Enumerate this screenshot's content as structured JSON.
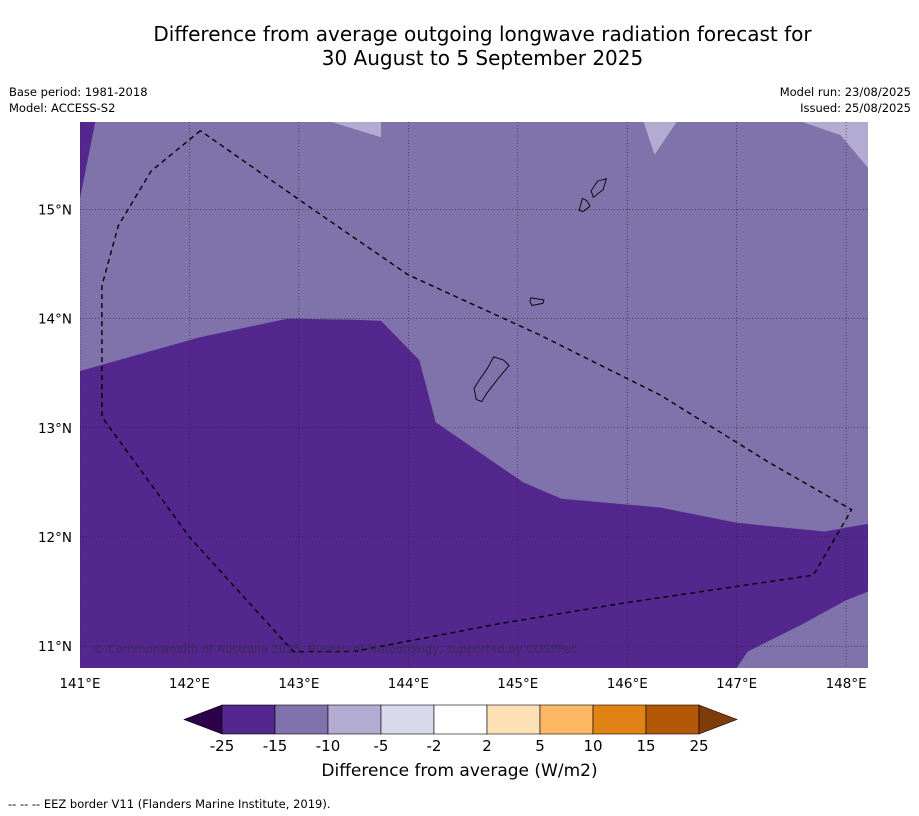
{
  "title_line1": "Difference from average outgoing longwave radiation forecast for",
  "title_line2": "30 August to 5 September 2025",
  "meta_left": [
    "Base period: 1981-2018",
    "Model: ACCESS-S2"
  ],
  "meta_right": [
    "Model run: 23/08/2025",
    "Issued: 25/08/2025"
  ],
  "copyright": "© Commonwealth of Australia 2025, Bureau of Meteorology, supported by COSPPac",
  "map": {
    "lon_range": [
      141.0,
      148.2
    ],
    "lat_range": [
      10.8,
      15.8
    ],
    "lon_ticks": [
      {
        "v": 141,
        "label": "141°E"
      },
      {
        "v": 142,
        "label": "142°E"
      },
      {
        "v": 143,
        "label": "143°E"
      },
      {
        "v": 144,
        "label": "144°E"
      },
      {
        "v": 145,
        "label": "145°E"
      },
      {
        "v": 146,
        "label": "146°E"
      },
      {
        "v": 147,
        "label": "147°E"
      },
      {
        "v": 148,
        "label": "148°E"
      }
    ],
    "lat_ticks": [
      {
        "v": 15,
        "label": "15°N"
      },
      {
        "v": 14,
        "label": "14°N"
      },
      {
        "v": 13,
        "label": "13°N"
      },
      {
        "v": 12,
        "label": "12°N"
      },
      {
        "v": 11,
        "label": "11°N"
      }
    ],
    "colors": {
      "dark": "#54278f",
      "mid": "#8073ac",
      "light": "#b2abd2"
    },
    "regions": [
      {
        "cls": "dark",
        "pts": [
          [
            141.0,
            10.8
          ],
          [
            148.2,
            10.8
          ],
          [
            148.2,
            12.12
          ],
          [
            147.8,
            12.05
          ],
          [
            147.0,
            12.13
          ],
          [
            146.3,
            12.27
          ],
          [
            145.4,
            12.35
          ],
          [
            145.05,
            12.5
          ],
          [
            144.25,
            13.05
          ],
          [
            144.1,
            13.62
          ],
          [
            143.75,
            13.98
          ],
          [
            143.5,
            13.99
          ],
          [
            142.9,
            14.0
          ],
          [
            142.1,
            13.83
          ],
          [
            141.0,
            13.52
          ]
        ]
      },
      {
        "cls": "dark",
        "pts": [
          [
            141.0,
            15.8
          ],
          [
            141.14,
            15.8
          ],
          [
            141.0,
            15.1
          ]
        ]
      },
      {
        "cls": "mid",
        "pts": [
          [
            147.0,
            10.8
          ],
          [
            147.1,
            10.95
          ],
          [
            147.6,
            11.2
          ],
          [
            148.0,
            11.42
          ],
          [
            148.2,
            11.5
          ],
          [
            148.2,
            10.8
          ]
        ]
      },
      {
        "cls": "light",
        "pts": [
          [
            143.3,
            15.8
          ],
          [
            143.75,
            15.8
          ],
          [
            143.75,
            15.66
          ]
        ]
      },
      {
        "cls": "light",
        "pts": [
          [
            146.15,
            15.8
          ],
          [
            146.45,
            15.8
          ],
          [
            146.25,
            15.5
          ]
        ]
      },
      {
        "cls": "light",
        "pts": [
          [
            147.6,
            15.8
          ],
          [
            148.2,
            15.8
          ],
          [
            148.2,
            15.38
          ],
          [
            147.95,
            15.68
          ]
        ]
      }
    ],
    "eez": [
      [
        142.1,
        15.72
      ],
      [
        141.65,
        15.35
      ],
      [
        141.35,
        14.85
      ],
      [
        141.2,
        14.3
      ],
      [
        141.2,
        13.1
      ],
      [
        142.0,
        12.0
      ],
      [
        142.95,
        10.95
      ],
      [
        143.5,
        10.95
      ],
      [
        144.8,
        11.2
      ],
      [
        146.0,
        11.4
      ],
      [
        147.7,
        11.65
      ],
      [
        148.05,
        12.25
      ],
      [
        147.3,
        12.68
      ],
      [
        146.3,
        13.3
      ],
      [
        145.2,
        13.85
      ],
      [
        144.0,
        14.4
      ],
      [
        143.2,
        14.95
      ],
      [
        142.1,
        15.72
      ]
    ],
    "islands": [
      [
        [
          144.78,
          13.65
        ],
        [
          144.87,
          13.62
        ],
        [
          144.92,
          13.57
        ],
        [
          144.82,
          13.45
        ],
        [
          144.72,
          13.32
        ],
        [
          144.67,
          13.24
        ],
        [
          144.62,
          13.26
        ],
        [
          144.6,
          13.36
        ],
        [
          144.65,
          13.44
        ],
        [
          144.72,
          13.54
        ]
      ],
      [
        [
          145.12,
          14.19
        ],
        [
          145.24,
          14.17
        ],
        [
          145.23,
          14.14
        ],
        [
          145.13,
          14.12
        ],
        [
          145.11,
          14.16
        ]
      ],
      [
        [
          145.6,
          14.98
        ],
        [
          145.66,
          15.03
        ],
        [
          145.63,
          15.08
        ],
        [
          145.59,
          15.1
        ],
        [
          145.56,
          14.99
        ]
      ],
      [
        [
          145.73,
          15.26
        ],
        [
          145.81,
          15.28
        ],
        [
          145.78,
          15.18
        ],
        [
          145.69,
          15.11
        ],
        [
          145.67,
          15.17
        ]
      ]
    ]
  },
  "colorbar": {
    "ticks": [
      "-25",
      "-15",
      "-10",
      "-5",
      "-2",
      "2",
      "5",
      "10",
      "15",
      "25"
    ],
    "colors": [
      "#54278f",
      "#8073ac",
      "#b2abd2",
      "#d8daeb",
      "#ffffff",
      "#fee0b6",
      "#fdb863",
      "#e08214",
      "#b35806"
    ],
    "under_color": "#2d004b",
    "over_color": "#7f3b08",
    "label": "Difference from average (W/m2)"
  },
  "footnote": "--  --  -- EEZ border V11 (Flanders Marine Institute, 2019)."
}
